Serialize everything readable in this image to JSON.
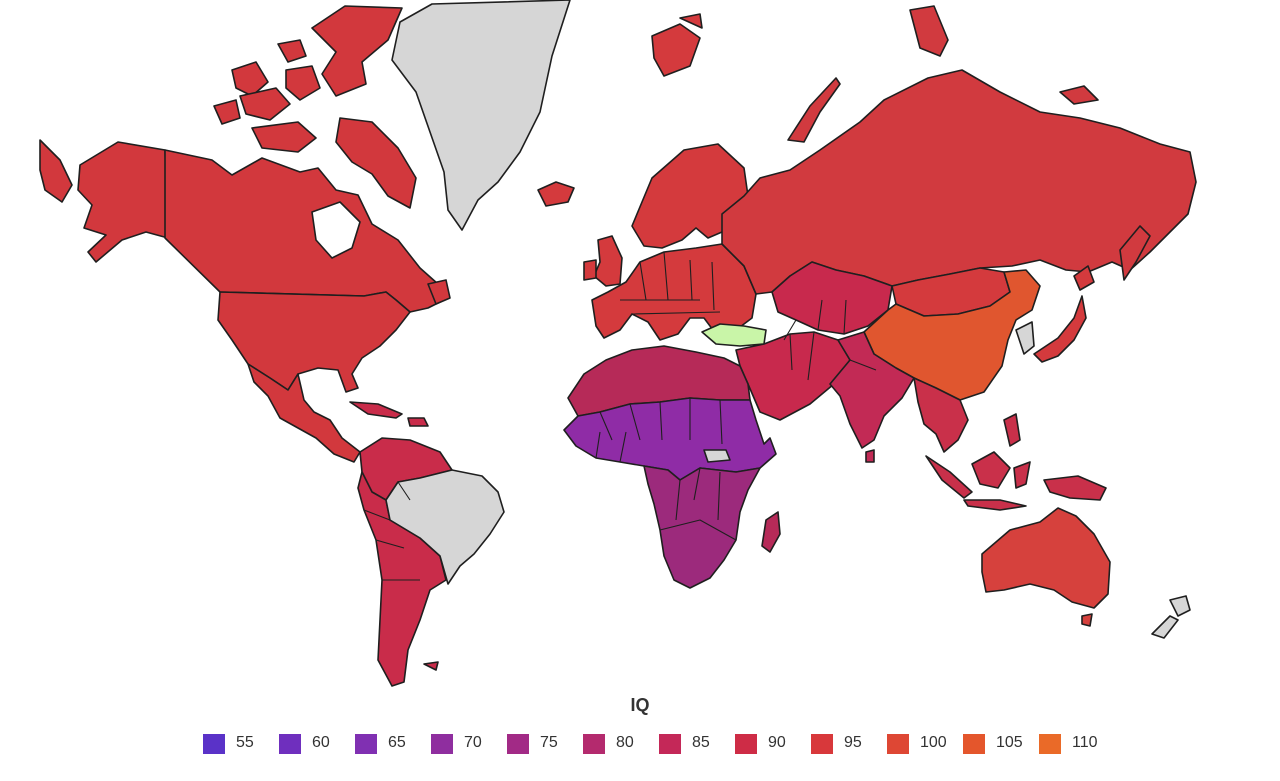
{
  "colors": {
    "background": "#ffffff",
    "no_data": "#d6d6d6",
    "outline": "#1f1f1f",
    "highlight": "#c9f5a8",
    "north_america": "#d2383d",
    "south_america": "#c92c4a",
    "europe": "#d43a3d",
    "russia": "#d13a3f",
    "china": "#e0562f",
    "north_africa": "#b62a58",
    "west_africa": "#8f2ca6",
    "southern_africa": "#9c2a7c",
    "middle_east": "#c8294d",
    "south_asia": "#c22a55",
    "southeast_asia": "#c9304a",
    "australia": "#d6413d"
  },
  "map": {
    "legend": {
      "title": "IQ",
      "items": [
        {
          "label": "55",
          "color": "#5a32c8"
        },
        {
          "label": "60",
          "color": "#6f2fbe"
        },
        {
          "label": "65",
          "color": "#8030b2"
        },
        {
          "label": "70",
          "color": "#8f2e9f"
        },
        {
          "label": "75",
          "color": "#a22a86"
        },
        {
          "label": "80",
          "color": "#b42a6e"
        },
        {
          "label": "85",
          "color": "#c42858"
        },
        {
          "label": "90",
          "color": "#ce2c46"
        },
        {
          "label": "95",
          "color": "#d8383b"
        },
        {
          "label": "100",
          "color": "#de4734"
        },
        {
          "label": "105",
          "color": "#e4562c"
        },
        {
          "label": "110",
          "color": "#ea6a28"
        }
      ]
    }
  }
}
